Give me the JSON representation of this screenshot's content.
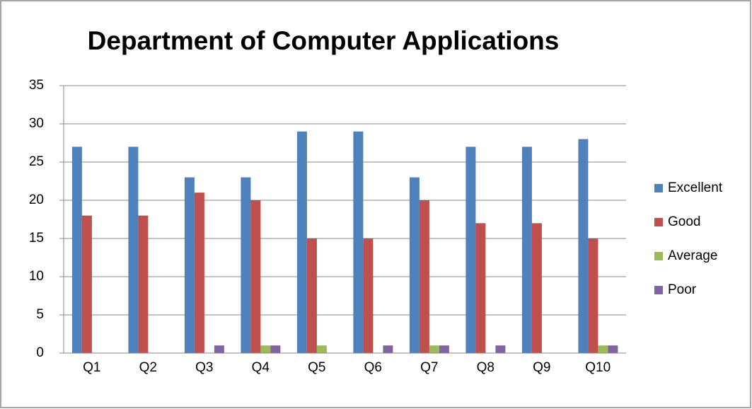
{
  "chart_data": {
    "type": "bar",
    "title": "Department of Computer Applications",
    "categories": [
      "Q1",
      "Q2",
      "Q3",
      "Q4",
      "Q5",
      "Q6",
      "Q7",
      "Q8",
      "Q9",
      "Q10"
    ],
    "series": [
      {
        "name": "Excellent",
        "color": "#4f81bd",
        "values": [
          27,
          27,
          23,
          23,
          29,
          29,
          23,
          27,
          27,
          28
        ]
      },
      {
        "name": "Good",
        "color": "#c0504d",
        "values": [
          18,
          18,
          21,
          20,
          15,
          15,
          20,
          17,
          17,
          15
        ]
      },
      {
        "name": "Average",
        "color": "#9bbb59",
        "values": [
          0,
          0,
          0,
          1,
          1,
          0,
          1,
          0,
          0,
          1
        ]
      },
      {
        "name": "Poor",
        "color": "#8064a2",
        "values": [
          0,
          0,
          1,
          1,
          0,
          1,
          1,
          1,
          0,
          1
        ]
      }
    ],
    "ylim": [
      0,
      35
    ],
    "yticks": [
      0,
      5,
      10,
      15,
      20,
      25,
      30,
      35
    ],
    "grid": true,
    "legend": "right"
  }
}
